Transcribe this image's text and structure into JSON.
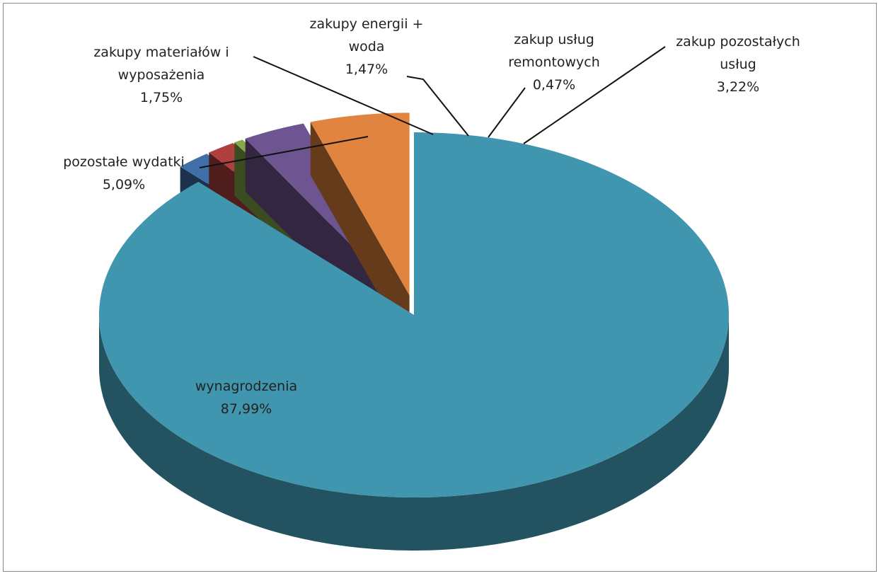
{
  "chart_data": {
    "type": "pie3d",
    "categories": [
      "wynagrodzenia",
      "zakupy materiałów i wyposażenia",
      "zakupy energii + woda",
      "zakup usług remontowych",
      "zakup pozostałych usług",
      "pozostałe wydatki"
    ],
    "values": [
      87.99,
      1.75,
      1.47,
      0.47,
      3.22,
      5.09
    ],
    "value_labels": [
      "87,99%",
      "1,75%",
      "1,47%",
      "0,47%",
      "3,22%",
      "5,09%"
    ],
    "colors": [
      "#4096ae",
      "#3f6ea8",
      "#b0403f",
      "#86a84a",
      "#6e5490",
      "#e0843f"
    ]
  }
}
